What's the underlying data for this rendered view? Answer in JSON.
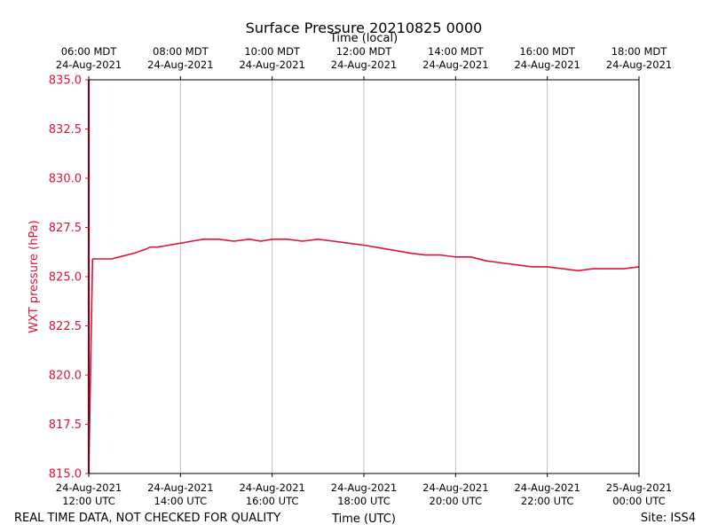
{
  "chart_data": {
    "type": "line",
    "title": "Surface Pressure 20210825 0000",
    "xlabel_bottom": "Time (UTC)",
    "xlabel_top": "Time (local)",
    "ylabel": "WXT pressure (hPa)",
    "ylim": [
      815.0,
      835.0
    ],
    "xlim": [
      "2021-08-24 12:00 UTC",
      "2021-08-25 00:00 UTC"
    ],
    "y_ticks": [
      "815.0",
      "817.5",
      "820.0",
      "822.5",
      "825.0",
      "827.5",
      "830.0",
      "832.5",
      "835.0"
    ],
    "x_ticks_bottom": [
      {
        "date": "24-Aug-2021",
        "time": "12:00 UTC"
      },
      {
        "date": "24-Aug-2021",
        "time": "14:00 UTC"
      },
      {
        "date": "24-Aug-2021",
        "time": "16:00 UTC"
      },
      {
        "date": "24-Aug-2021",
        "time": "18:00 UTC"
      },
      {
        "date": "24-Aug-2021",
        "time": "20:00 UTC"
      },
      {
        "date": "24-Aug-2021",
        "time": "22:00 UTC"
      },
      {
        "date": "25-Aug-2021",
        "time": "00:00 UTC"
      }
    ],
    "x_ticks_top": [
      {
        "time": "06:00 MDT",
        "date": "24-Aug-2021"
      },
      {
        "time": "08:00 MDT",
        "date": "24-Aug-2021"
      },
      {
        "time": "10:00 MDT",
        "date": "24-Aug-2021"
      },
      {
        "time": "12:00 MDT",
        "date": "24-Aug-2021"
      },
      {
        "time": "14:00 MDT",
        "date": "24-Aug-2021"
      },
      {
        "time": "16:00 MDT",
        "date": "24-Aug-2021"
      },
      {
        "time": "18:00 MDT",
        "date": "24-Aug-2021"
      }
    ],
    "grid": "vertical",
    "series": [
      {
        "color": "#dc143c",
        "x": [
          "12:00",
          "12:05",
          "12:30",
          "12:40",
          "13:00",
          "13:15",
          "13:20",
          "13:30",
          "13:45",
          "14:00",
          "14:15",
          "14:30",
          "14:50",
          "15:10",
          "15:30",
          "15:45",
          "16:00",
          "16:20",
          "16:40",
          "17:00",
          "17:20",
          "17:40",
          "18:00",
          "18:15",
          "18:30",
          "18:45",
          "19:00",
          "19:20",
          "19:40",
          "20:00",
          "20:20",
          "20:40",
          "21:00",
          "21:20",
          "21:40",
          "22:00",
          "22:20",
          "22:40",
          "23:00",
          "23:20",
          "23:40",
          "00:00"
        ],
        "y": [
          815.0,
          825.9,
          825.9,
          826.0,
          826.2,
          826.4,
          826.5,
          826.5,
          826.6,
          826.7,
          826.8,
          826.9,
          826.9,
          826.8,
          826.9,
          826.8,
          826.9,
          826.9,
          826.8,
          826.9,
          826.8,
          826.7,
          826.6,
          826.5,
          826.4,
          826.3,
          826.2,
          826.1,
          826.1,
          826.0,
          826.0,
          825.8,
          825.7,
          825.6,
          825.5,
          825.5,
          825.4,
          825.3,
          825.4,
          825.4,
          825.4,
          825.5
        ]
      }
    ]
  },
  "footer": {
    "left": "REAL TIME DATA, NOT CHECKED FOR QUALITY",
    "right": "Site: ISS4"
  },
  "colors": {
    "series": "#dc143c",
    "axis": "#000000",
    "grid": "#b0b0b0"
  }
}
